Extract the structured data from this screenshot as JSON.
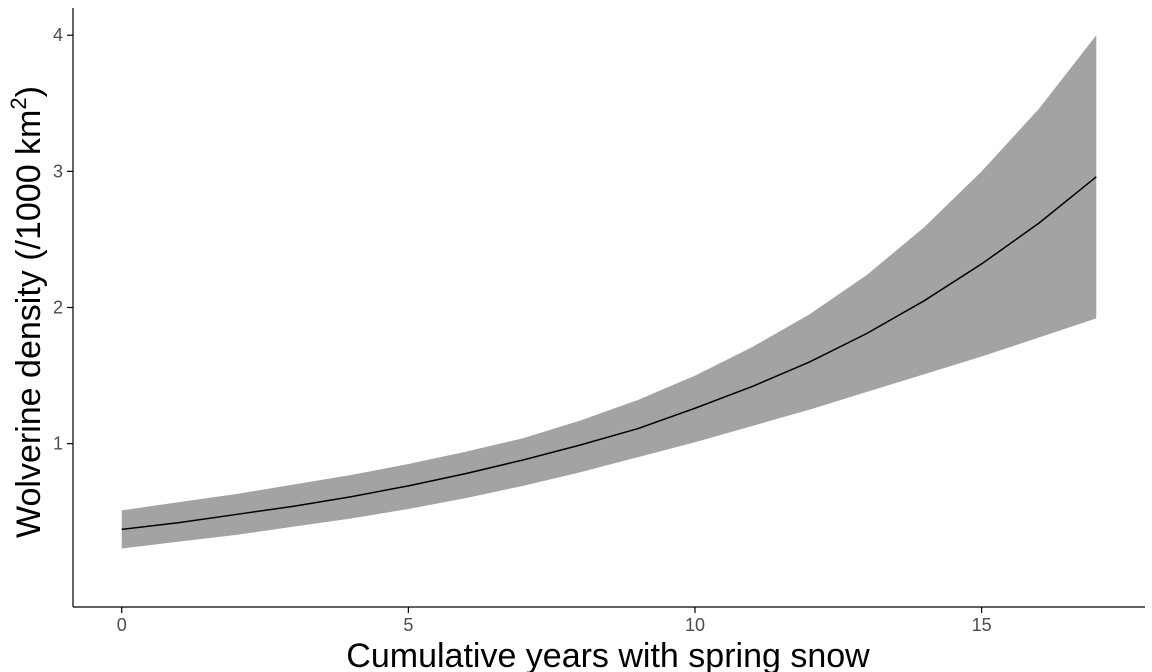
{
  "chart_data": {
    "type": "line",
    "title": "",
    "xlabel": "Cumulative years with spring snow",
    "ylabel": {
      "main": "Wolverine density (/1000 km",
      "superscript": "2",
      "close": ")"
    },
    "xlim": [
      -0.85,
      17.85
    ],
    "ylim": [
      -0.2,
      4.2
    ],
    "x_ticks": [
      0,
      5,
      10,
      15
    ],
    "x_tick_labels": [
      "0",
      "5",
      "10",
      "15"
    ],
    "y_ticks": [
      1,
      2,
      3,
      4
    ],
    "y_tick_labels": [
      "1",
      "2",
      "3",
      "4"
    ],
    "grid": false,
    "series": [
      {
        "kind": "line",
        "x": [
          0,
          1,
          2,
          3,
          4,
          5,
          6,
          7,
          8,
          9,
          10,
          11,
          12,
          13,
          14,
          15,
          16,
          17
        ],
        "values": [
          0.37,
          0.42,
          0.48,
          0.54,
          0.61,
          0.69,
          0.78,
          0.88,
          0.99,
          1.11,
          1.26,
          1.42,
          1.6,
          1.81,
          2.05,
          2.32,
          2.62,
          2.96
        ]
      },
      {
        "kind": "ribbon",
        "x": [
          0,
          1,
          2,
          3,
          4,
          5,
          6,
          7,
          8,
          9,
          10,
          11,
          12,
          13,
          14,
          15,
          16,
          17
        ],
        "lower": [
          0.23,
          0.28,
          0.33,
          0.39,
          0.45,
          0.52,
          0.6,
          0.69,
          0.79,
          0.9,
          1.01,
          1.13,
          1.25,
          1.38,
          1.51,
          1.64,
          1.78,
          1.92
        ],
        "upper": [
          0.51,
          0.57,
          0.63,
          0.7,
          0.77,
          0.85,
          0.94,
          1.04,
          1.17,
          1.32,
          1.5,
          1.71,
          1.95,
          2.24,
          2.59,
          3.0,
          3.46,
          4.0
        ]
      }
    ],
    "colors": {
      "line": "#000000",
      "ribbon": "#a3a3a3",
      "axis": "#000000",
      "tick_label": "#4d4d4d"
    }
  }
}
